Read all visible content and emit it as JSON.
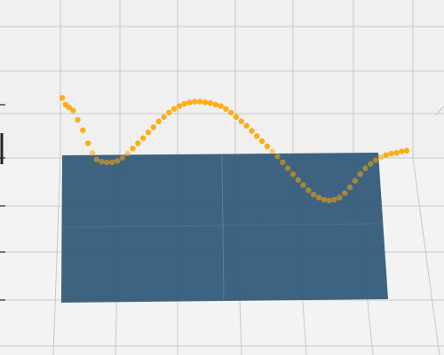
{
  "chart_data": {
    "type": "scatter3d",
    "title": "",
    "grid": true,
    "x_range": [
      0,
      1
    ],
    "y_range": [
      -1,
      1
    ],
    "plane": {
      "y_value": 0,
      "color": "#2e5777",
      "opacity": 0.92
    },
    "series": [
      {
        "color": "#ffa500",
        "points": [
          [
            0.0,
            1.02
          ],
          [
            0.01,
            0.93
          ],
          [
            0.02,
            0.89
          ],
          [
            0.032,
            0.85
          ],
          [
            0.045,
            0.72
          ],
          [
            0.06,
            0.58
          ],
          [
            0.075,
            0.4
          ],
          [
            0.088,
            0.27
          ],
          [
            0.1,
            0.18
          ],
          [
            0.115,
            0.15
          ],
          [
            0.13,
            0.14
          ],
          [
            0.145,
            0.14
          ],
          [
            0.16,
            0.16
          ],
          [
            0.175,
            0.2
          ],
          [
            0.19,
            0.26
          ],
          [
            0.205,
            0.33
          ],
          [
            0.22,
            0.4
          ],
          [
            0.235,
            0.47
          ],
          [
            0.25,
            0.55
          ],
          [
            0.265,
            0.62
          ],
          [
            0.28,
            0.7
          ],
          [
            0.295,
            0.76
          ],
          [
            0.31,
            0.82
          ],
          [
            0.325,
            0.87
          ],
          [
            0.34,
            0.91
          ],
          [
            0.355,
            0.94
          ],
          [
            0.37,
            0.96
          ],
          [
            0.385,
            0.97
          ],
          [
            0.4,
            0.97
          ],
          [
            0.415,
            0.96
          ],
          [
            0.43,
            0.95
          ],
          [
            0.445,
            0.93
          ],
          [
            0.46,
            0.91
          ],
          [
            0.475,
            0.87
          ],
          [
            0.49,
            0.82
          ],
          [
            0.505,
            0.76
          ],
          [
            0.52,
            0.7
          ],
          [
            0.535,
            0.64
          ],
          [
            0.55,
            0.57
          ],
          [
            0.565,
            0.5
          ],
          [
            0.58,
            0.43
          ],
          [
            0.595,
            0.36
          ],
          [
            0.61,
            0.29
          ],
          [
            0.625,
            0.22
          ],
          [
            0.64,
            0.14
          ],
          [
            0.655,
            0.06
          ],
          [
            0.67,
            -0.02
          ],
          [
            0.685,
            -0.1
          ],
          [
            0.7,
            -0.17
          ],
          [
            0.715,
            -0.24
          ],
          [
            0.73,
            -0.3
          ],
          [
            0.745,
            -0.34
          ],
          [
            0.76,
            -0.37
          ],
          [
            0.775,
            -0.38
          ],
          [
            0.79,
            -0.37
          ],
          [
            0.805,
            -0.34
          ],
          [
            0.82,
            -0.28
          ],
          [
            0.835,
            -0.2
          ],
          [
            0.85,
            -0.11
          ],
          [
            0.865,
            -0.02
          ],
          [
            0.88,
            0.06
          ],
          [
            0.895,
            0.12
          ],
          [
            0.91,
            0.17
          ],
          [
            0.925,
            0.21
          ],
          [
            0.94,
            0.24
          ],
          [
            0.955,
            0.26
          ],
          [
            0.97,
            0.27
          ],
          [
            0.985,
            0.29
          ],
          [
            1.0,
            0.3
          ]
        ]
      }
    ]
  }
}
